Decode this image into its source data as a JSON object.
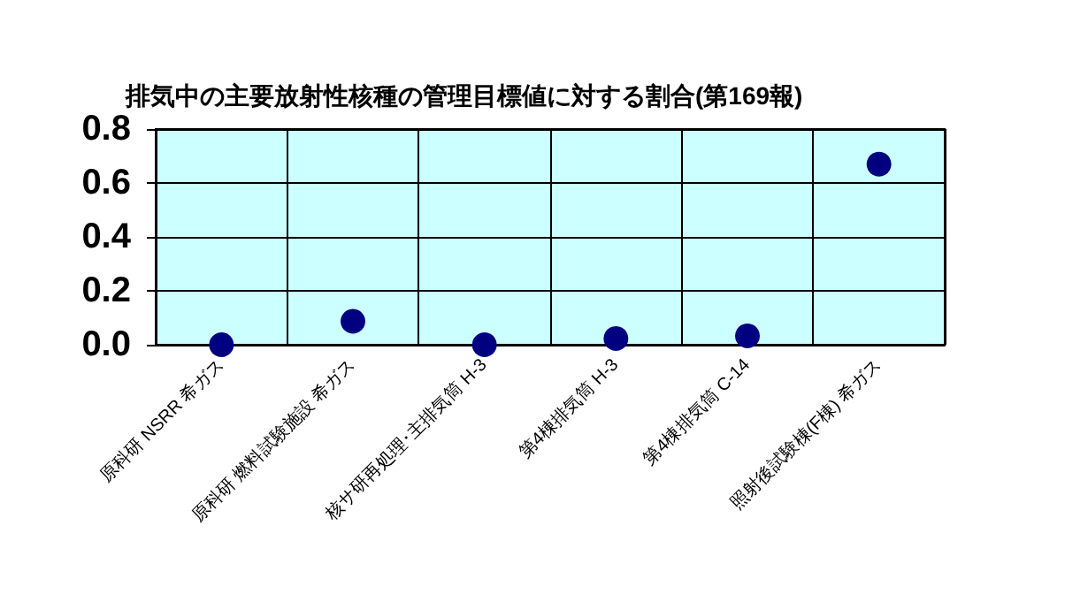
{
  "chart_data": {
    "type": "scatter",
    "title": "排気中の主要放射性核種の管理目標値に対する割合(第169報)",
    "categories": [
      "原科研 NSRR 希ガス",
      "原科研 燃料試験施設 希ガス",
      "核サ研再処理･主排気筒 H-3",
      "第4棟排気筒 H-3",
      "第4棟排気筒 C-14",
      "照射後試験棟(F棟) 希ガス"
    ],
    "series": [
      {
        "color": "#000080",
        "values": [
          0.0,
          0.087,
          0.0,
          0.023,
          0.033,
          0.67
        ]
      }
    ],
    "ylim": [
      0,
      0.8
    ],
    "yticks": [
      {
        "value": 0,
        "label": "0.0"
      },
      {
        "value": 0.2,
        "label": "0.2"
      },
      {
        "value": 0.4,
        "label": "0.4"
      },
      {
        "value": 0.6,
        "label": "0.6"
      },
      {
        "value": 0.8,
        "label": "0.8"
      }
    ],
    "grid": true,
    "marker": "circle"
  }
}
